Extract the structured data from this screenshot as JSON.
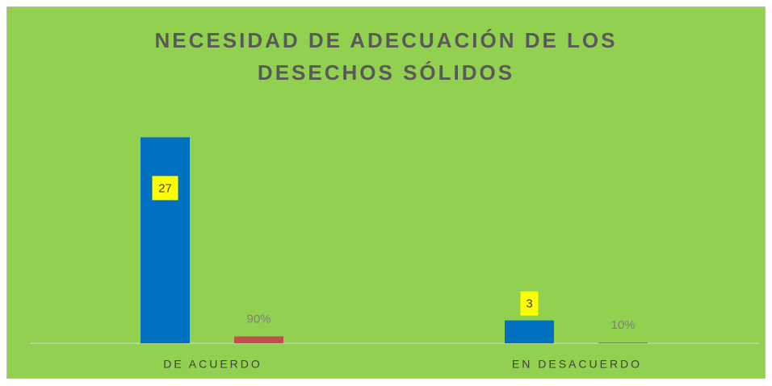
{
  "chart_data": {
    "type": "bar",
    "title": "NECESIDAD DE ADECUACIÓN DE LOS DESECHOS SÓLIDOS",
    "categories": [
      "DE ACUERDO",
      "EN DESACUERDO"
    ],
    "series": [
      {
        "color": "#0070c0",
        "values": [
          27,
          3
        ]
      },
      {
        "color": "#c0504d",
        "values": [
          0.9,
          0.1
        ],
        "value_labels": [
          "90%",
          "10%"
        ]
      }
    ],
    "ylim": [
      0,
      30
    ]
  }
}
